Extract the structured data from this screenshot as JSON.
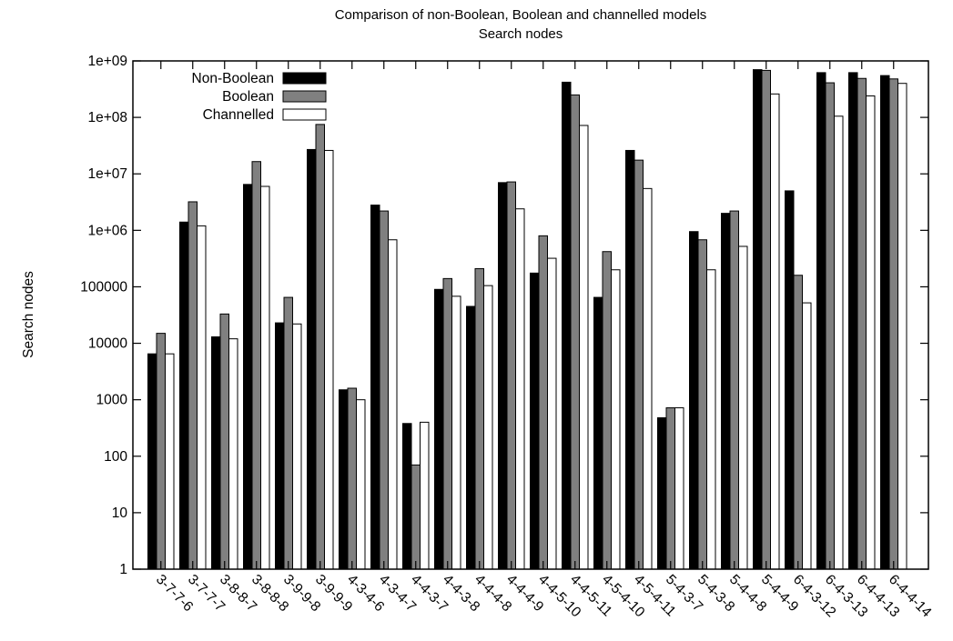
{
  "chart_data": {
    "type": "bar",
    "title": "Comparison of non-Boolean, Boolean and channelled models",
    "subtitle": "Search nodes",
    "xlabel": "",
    "ylabel": "Search nodes",
    "yscale": "log",
    "ylim": [
      1,
      1000000000
    ],
    "yticks": [
      {
        "value": 1,
        "label": "1"
      },
      {
        "value": 10,
        "label": "10"
      },
      {
        "value": 100,
        "label": "100"
      },
      {
        "value": 1000,
        "label": "1000"
      },
      {
        "value": 10000,
        "label": "10000"
      },
      {
        "value": 100000,
        "label": "100000"
      },
      {
        "value": 1000000,
        "label": "1e+06"
      },
      {
        "value": 10000000,
        "label": "1e+07"
      },
      {
        "value": 100000000,
        "label": "1e+08"
      },
      {
        "value": 1000000000,
        "label": "1e+09"
      }
    ],
    "legend_position": "top-left",
    "grid": false,
    "categories": [
      "3-7-7-6",
      "3-7-7-7",
      "3-8-8-7",
      "3-8-8-8",
      "3-9-9-8",
      "3-9-9-9",
      "4-3-4-6",
      "4-3-4-7",
      "4-4-3-7",
      "4-4-3-8",
      "4-4-4-8",
      "4-4-4-9",
      "4-4-5-10",
      "4-4-5-11",
      "4-5-4-10",
      "4-5-4-11",
      "5-4-3-7",
      "5-4-3-8",
      "5-4-4-8",
      "5-4-4-9",
      "6-4-3-12",
      "6-4-3-13",
      "6-4-4-13",
      "6-4-4-14"
    ],
    "series": [
      {
        "name": "Non-Boolean",
        "color": "#000000",
        "values": [
          6500,
          1400000,
          13000,
          6500000,
          23000,
          27000000,
          1500,
          2800000,
          380,
          90000,
          45000,
          7000000,
          175000,
          420000000,
          65000,
          26000000,
          480,
          950000,
          2000000,
          700000000,
          5000000,
          620000000,
          620000000,
          550000000
        ]
      },
      {
        "name": "Boolean",
        "color": "#808080",
        "values": [
          15000,
          3200000,
          33000,
          16500000,
          65000,
          75000000,
          1600,
          2200000,
          70,
          140000,
          210000,
          7200000,
          800000,
          250000000,
          420000,
          17500000,
          720,
          680000,
          2200000,
          680000000,
          160000,
          410000000,
          490000000,
          480000000
        ]
      },
      {
        "name": "Channelled",
        "color": "#ffffff",
        "values": [
          6500,
          1200000,
          12000,
          6000000,
          22000,
          26000000,
          1000,
          680000,
          400,
          68000,
          105000,
          2400000,
          320000,
          72000000,
          200000,
          5500000,
          720,
          200000,
          520000,
          260000000,
          52000,
          105000000,
          240000000,
          400000000
        ]
      }
    ]
  }
}
